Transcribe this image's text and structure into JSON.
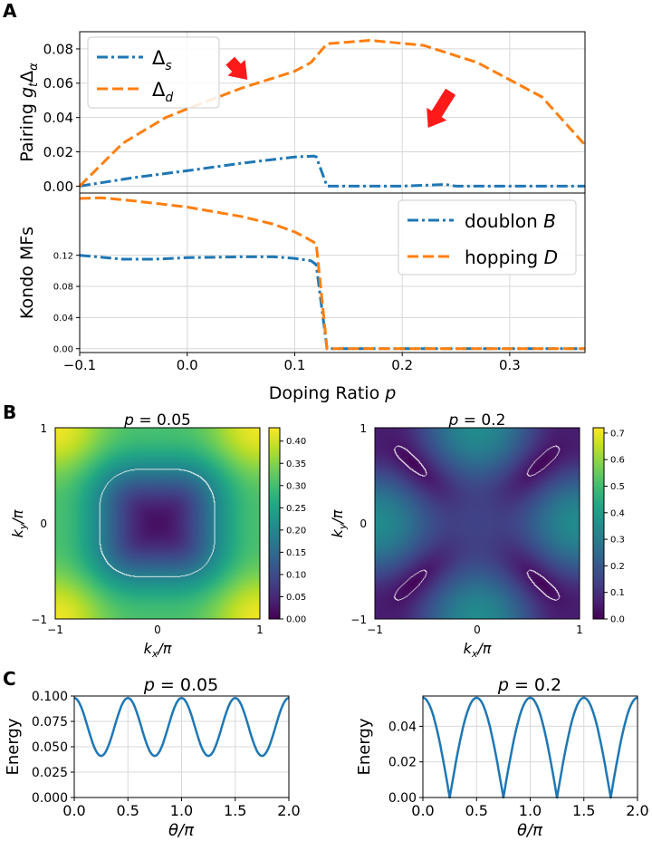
{
  "panel_labels": {
    "a": "A",
    "b": "B",
    "c": "C"
  },
  "colors": {
    "blue": "#1f77b4",
    "orange": "#ff7f0e",
    "arrow": "#ff1a1a",
    "grid": "#d8d8d8"
  },
  "chart_data": [
    {
      "id": "A_top",
      "type": "line",
      "ylabel": "Pairing g_tΔ_α",
      "ylabel_main": "Pairing ",
      "ylabel_g": "g",
      "ylabel_t": "t",
      "ylabel_delta": "Δ",
      "ylabel_alpha": "α",
      "xlim": [
        -0.1,
        0.37
      ],
      "ylim": [
        -0.004,
        0.09
      ],
      "yticks": [
        "0.00",
        "0.02",
        "0.04",
        "0.06",
        "0.08"
      ],
      "ytick_values": [
        0,
        0.02,
        0.04,
        0.06,
        0.08
      ],
      "legend": {
        "position": "top-left",
        "entries": [
          {
            "main": "Δ",
            "sub": "s",
            "name": "Δ_s"
          },
          {
            "main": "Δ",
            "sub": "d",
            "name": "Δ_d"
          }
        ]
      },
      "annotations": [
        {
          "type": "arrow",
          "from": [
            0.04,
            0.073
          ],
          "to": [
            0.056,
            0.062
          ]
        },
        {
          "type": "arrow",
          "from": [
            0.245,
            0.055
          ],
          "to": [
            0.224,
            0.034
          ]
        }
      ],
      "series": [
        {
          "name": "Δ_s",
          "color": "#1f77b4",
          "dash": "dashdot",
          "x": [
            -0.1,
            -0.05,
            0.0,
            0.05,
            0.1,
            0.118,
            0.12,
            0.13,
            0.2,
            0.24,
            0.25,
            0.37
          ],
          "y": [
            0.0,
            0.005,
            0.009,
            0.0133,
            0.017,
            0.0175,
            0.0172,
            0.0,
            0.0,
            0.001,
            0.0,
            0.0
          ]
        },
        {
          "name": "Δ_d",
          "color": "#ff7f0e",
          "dash": "dash",
          "x": [
            -0.1,
            -0.06,
            -0.02,
            0.0,
            0.05,
            0.1,
            0.115,
            0.13,
            0.17,
            0.22,
            0.27,
            0.3,
            0.33,
            0.37
          ],
          "y": [
            0.0,
            0.025,
            0.04,
            0.045,
            0.057,
            0.067,
            0.072,
            0.083,
            0.085,
            0.082,
            0.072,
            0.062,
            0.052,
            0.024
          ]
        }
      ]
    },
    {
      "id": "A_bottom",
      "type": "line",
      "xlabel": "Doping Ratio p",
      "xlabel_main": "Doping Ratio ",
      "xlabel_var": "p",
      "ylabel": "Kondo MFs",
      "xlim": [
        -0.1,
        0.37
      ],
      "ylim": [
        -0.005,
        0.2
      ],
      "xticks": [
        "−0.1",
        "0.0",
        "0.1",
        "0.2",
        "0.3"
      ],
      "xtick_values": [
        -0.1,
        0.0,
        0.1,
        0.2,
        0.3
      ],
      "yticks": [
        "0.00",
        "0.04",
        "0.08",
        "0.12"
      ],
      "ytick_values": [
        0,
        0.04,
        0.08,
        0.12
      ],
      "legend": {
        "position": "top-right",
        "entries": [
          {
            "main": "doublon ",
            "sub": "B",
            "name": "doublon B"
          },
          {
            "main": "hopping ",
            "sub": "D",
            "name": "hopping D"
          }
        ]
      },
      "series": [
        {
          "name": "doublon B",
          "color": "#1f77b4",
          "dash": "dashdot",
          "x": [
            -0.1,
            -0.06,
            -0.03,
            0.0,
            0.05,
            0.08,
            0.1,
            0.115,
            0.12,
            0.13,
            0.37
          ],
          "y": [
            0.12,
            0.115,
            0.115,
            0.117,
            0.118,
            0.118,
            0.116,
            0.113,
            0.108,
            0.0,
            0.0
          ]
        },
        {
          "name": "hopping D",
          "color": "#ff7f0e",
          "dash": "dash",
          "x": [
            -0.1,
            -0.08,
            -0.05,
            0.0,
            0.05,
            0.08,
            0.1,
            0.11,
            0.12,
            0.13,
            0.37
          ],
          "y": [
            0.193,
            0.194,
            0.19,
            0.182,
            0.17,
            0.16,
            0.15,
            0.143,
            0.135,
            0.0,
            0.0
          ]
        }
      ]
    },
    {
      "id": "B_left",
      "type": "heatmap",
      "title_var": "p",
      "title_value": " = 0.05",
      "p": 0.05,
      "xlabel_main": "k",
      "xlabel_sub": "x",
      "xlabel_tail": "/π",
      "ylabel_main": "k",
      "ylabel_sub": "y",
      "ylabel_tail": "/π",
      "xticks": [
        "−1",
        "0",
        "1"
      ],
      "yticks": [
        "1",
        "0",
        "−1"
      ],
      "colorbar": {
        "min": 0,
        "max": 0.43,
        "ticks": [
          "0.00",
          "0.05",
          "0.10",
          "0.15",
          "0.20",
          "0.25",
          "0.30",
          "0.35",
          "0.40"
        ],
        "tick_values": [
          0,
          0.05,
          0.1,
          0.15,
          0.2,
          0.25,
          0.3,
          0.35,
          0.4
        ]
      },
      "contours": [
        "Fermi surface (white)"
      ]
    },
    {
      "id": "B_right",
      "type": "heatmap",
      "title_var": "p",
      "title_value": " = 0.2",
      "p": 0.2,
      "xlabel_main": "k",
      "xlabel_sub": "x",
      "xlabel_tail": "/π",
      "ylabel_main": "k",
      "ylabel_sub": "y",
      "ylabel_tail": "/π",
      "xticks": [
        "−1",
        "0",
        "1"
      ],
      "yticks": [
        "1",
        "0",
        "−1"
      ],
      "colorbar": {
        "min": 0,
        "max": 0.72,
        "ticks": [
          "0.0",
          "0.1",
          "0.2",
          "0.3",
          "0.4",
          "0.5",
          "0.6",
          "0.7"
        ],
        "tick_values": [
          0,
          0.1,
          0.2,
          0.3,
          0.4,
          0.5,
          0.6,
          0.7
        ]
      },
      "contours": [
        "Fermi surface (white)"
      ]
    },
    {
      "id": "C_left",
      "type": "line",
      "title_var": "p",
      "title_value": " = 0.05",
      "xlabel_main": "θ",
      "xlabel_tail": "/π",
      "ylabel": "Energy",
      "xlim": [
        0,
        2
      ],
      "ylim": [
        0,
        0.1
      ],
      "xticks": [
        "0.0",
        "0.5",
        "1.0",
        "1.5",
        "2.0"
      ],
      "xtick_values": [
        0,
        0.5,
        1,
        1.5,
        2
      ],
      "yticks": [
        "0.000",
        "0.025",
        "0.050",
        "0.075",
        "0.100"
      ],
      "ytick_values": [
        0,
        0.025,
        0.05,
        0.075,
        0.1
      ],
      "series": [
        {
          "name": "gap",
          "color": "#1f77b4",
          "formula": "a + b*cos(4θ)",
          "a": 0.0695,
          "b": 0.0285
        }
      ]
    },
    {
      "id": "C_right",
      "type": "line",
      "title_var": "p",
      "title_value": " = 0.2",
      "xlabel_main": "θ",
      "xlabel_tail": "/π",
      "ylabel": "Energy",
      "xlim": [
        0,
        2
      ],
      "ylim": [
        0,
        0.057
      ],
      "xticks": [
        "0.0",
        "0.5",
        "1.0",
        "1.5",
        "2.0"
      ],
      "xtick_values": [
        0,
        0.5,
        1,
        1.5,
        2
      ],
      "yticks": [
        "0.00",
        "0.02",
        "0.04"
      ],
      "ytick_values": [
        0,
        0.02,
        0.04
      ],
      "series": [
        {
          "name": "gap",
          "color": "#1f77b4",
          "formula": "A*|cos(2θ)|",
          "A": 0.056
        }
      ]
    }
  ]
}
